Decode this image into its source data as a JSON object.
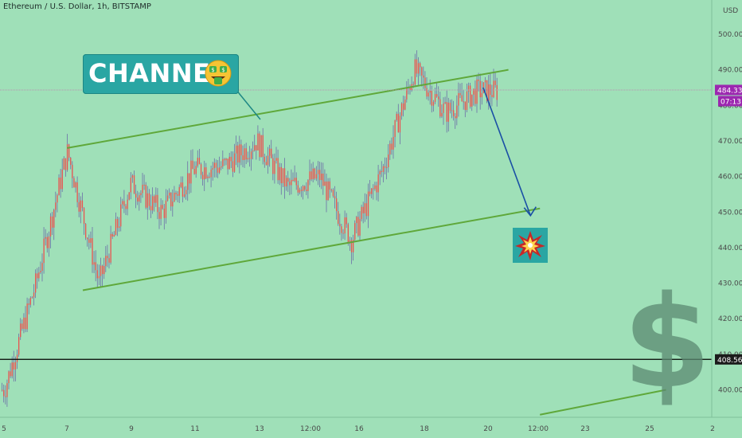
{
  "header": {
    "symbol_line": "Ethereum / U.S. Dollar, 1h, BITSTAMP"
  },
  "annotations": {
    "channel_label": "CHANNEL",
    "emoji_icon": "money-mouth-face-icon",
    "explosion_icon": "collision-icon",
    "dollar_sign": "$"
  },
  "price_axis": {
    "currency": "USD",
    "ticks": [
      "500.00",
      "490.00",
      "480.00",
      "470.00",
      "460.00",
      "450.00",
      "440.00",
      "430.00",
      "420.00",
      "410.00",
      "400.00"
    ],
    "current_price": "484.33",
    "countdown": "07:13",
    "level_price": "408.56"
  },
  "time_axis": {
    "ticks": [
      "5",
      "7",
      "9",
      "11",
      "13",
      "12:00",
      "16",
      "18",
      "20",
      "12:00",
      "23",
      "25",
      "2"
    ]
  },
  "colors": {
    "background": "#9fe0b8",
    "candle": "#e8524f",
    "wick": "#6d6fa8",
    "channel": "#5fa83a",
    "arrow": "#1a4fa5",
    "badge_purple": "#9c27b0",
    "level_line": "#000000"
  },
  "chart_data": {
    "type": "line",
    "title": "Ethereum / U.S. Dollar, 1h, BITSTAMP",
    "xlabel": "",
    "ylabel": "USD",
    "ylim": [
      393,
      504
    ],
    "x": [
      "5",
      "6",
      "7",
      "8",
      "9",
      "10",
      "11",
      "12",
      "13",
      "14",
      "15",
      "16",
      "17",
      "18",
      "19",
      "20"
    ],
    "series": [
      {
        "values": [
          400,
          430,
          467,
          430,
          458,
          450,
          462,
          463,
          470,
          457,
          460,
          442,
          462,
          490,
          478,
          484
        ]
      }
    ],
    "channel_upper": [
      [
        7,
        468
      ],
      [
        21,
        490
      ]
    ],
    "channel_lower": [
      [
        7.5,
        428
      ],
      [
        22,
        451
      ]
    ],
    "extra_line": [
      [
        22,
        393
      ],
      [
        26,
        400
      ]
    ],
    "horizontal_level": 408.56,
    "current_price": 484.33,
    "projection_arrow": [
      [
        20.2,
        485
      ],
      [
        21.7,
        449
      ]
    ],
    "grid": false
  }
}
